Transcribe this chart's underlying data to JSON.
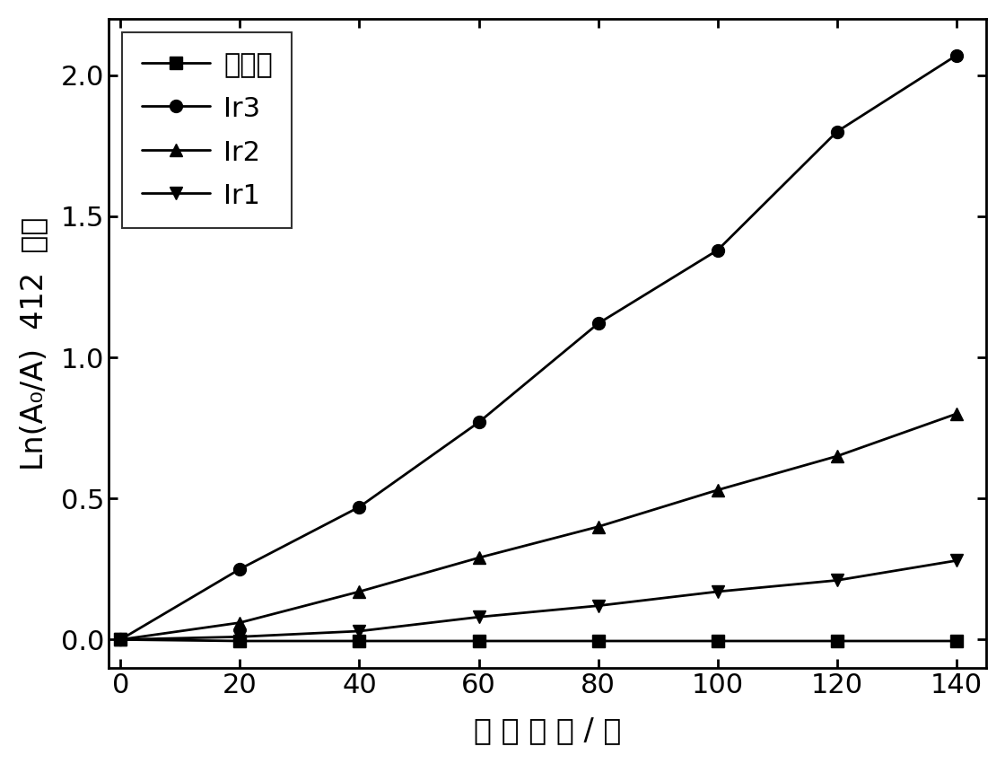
{
  "x": [
    0,
    20,
    40,
    60,
    80,
    100,
    120,
    140
  ],
  "control": [
    0.0,
    -0.005,
    -0.005,
    -0.005,
    -0.005,
    -0.005,
    -0.005,
    -0.005
  ],
  "Ir3": [
    0.0,
    0.25,
    0.47,
    0.77,
    1.12,
    1.38,
    1.8,
    2.07
  ],
  "Ir2": [
    0.0,
    0.06,
    0.17,
    0.29,
    0.4,
    0.53,
    0.65,
    0.8
  ],
  "Ir1": [
    0.0,
    0.01,
    0.03,
    0.08,
    0.12,
    0.17,
    0.21,
    0.28
  ],
  "xlabel": "光 照 时 间 / 秒",
  "ylabel_latin": "Ln(A",
  "ylabel_sub": "0",
  "ylabel_latin2": "/A)  412  ",
  "ylabel_cjk": "纳米",
  "xlim": [
    -2,
    145
  ],
  "ylim": [
    -0.1,
    2.2
  ],
  "xticks": [
    0,
    20,
    40,
    60,
    80,
    100,
    120,
    140
  ],
  "yticks": [
    0.0,
    0.5,
    1.0,
    1.5,
    2.0
  ],
  "line_color": "#000000",
  "bg_color": "#ffffff",
  "legend_labels": [
    "对照组",
    "Ir3",
    "Ir2",
    "Ir1"
  ],
  "linewidth": 2.0,
  "markersize": 10,
  "tick_fontsize": 22,
  "label_fontsize": 24
}
